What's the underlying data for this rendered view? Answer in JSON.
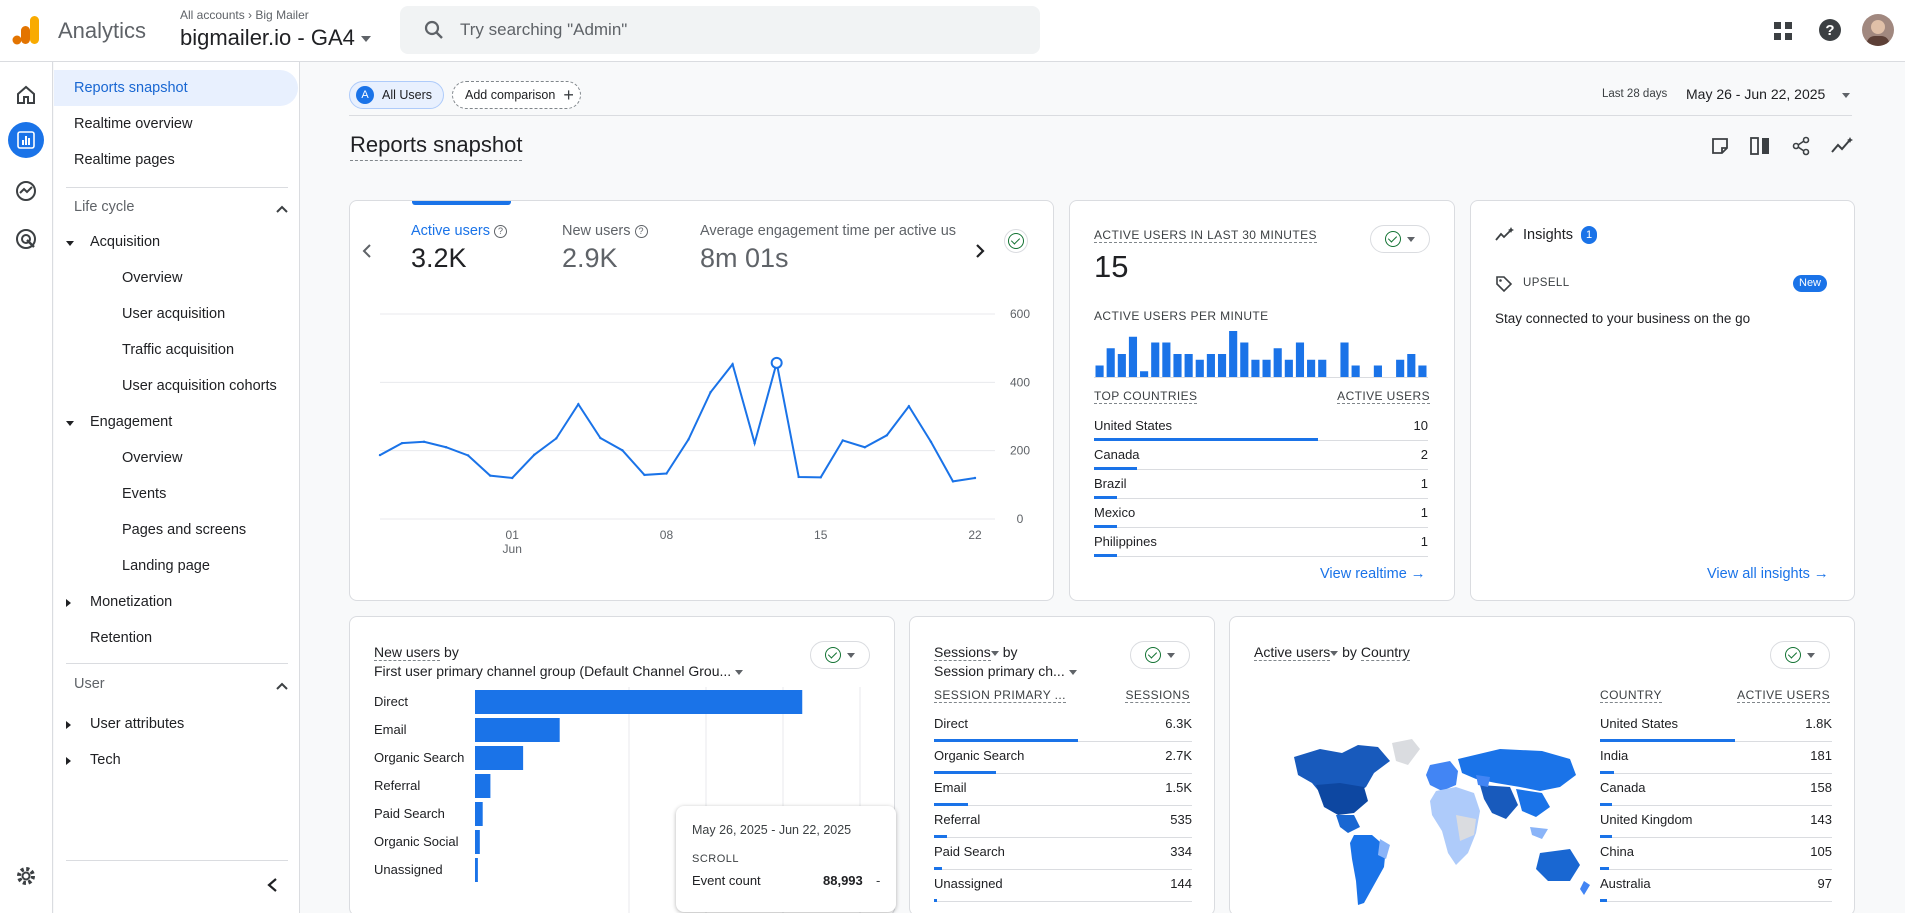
{
  "header": {
    "app_name": "Analytics",
    "breadcrumb_root": "All accounts",
    "breadcrumb_account": "Big Mailer",
    "property": "bigmailer.io - GA4",
    "search_placeholder": "Try searching \"Admin\""
  },
  "nav": {
    "items_top": [
      "Reports snapshot",
      "Realtime overview",
      "Realtime pages"
    ],
    "lifecycle_label": "Life cycle",
    "acquisition": {
      "label": "Acquisition",
      "children": [
        "Overview",
        "User acquisition",
        "Traffic acquisition",
        "User acquisition cohorts"
      ]
    },
    "engagement": {
      "label": "Engagement",
      "children": [
        "Overview",
        "Events",
        "Pages and screens",
        "Landing page"
      ]
    },
    "monetization": "Monetization",
    "retention": "Retention",
    "user_label": "User",
    "user_attributes": "User attributes",
    "tech": "Tech"
  },
  "toolbar": {
    "segment_letter": "A",
    "segment_label": "All Users",
    "add_comparison": "Add comparison",
    "range_label": "Last 28 days",
    "range_value": "May 26 - Jun 22, 2025"
  },
  "page_title": "Reports snapshot",
  "metrics": [
    {
      "label": "Active users",
      "value": "3.2K"
    },
    {
      "label": "New users",
      "value": "2.9K"
    },
    {
      "label": "Average engagement time per active us",
      "value": "8m 01s"
    }
  ],
  "chart_data": [
    {
      "type": "line",
      "series": [
        {
          "name": "Active users",
          "values": [
            187,
            222,
            226,
            210,
            186,
            127,
            120,
            188,
            236,
            336,
            237,
            201,
            129,
            133,
            233,
            371,
            453,
            222,
            457,
            123,
            122,
            230,
            210,
            245,
            330,
            226,
            110,
            120
          ]
        }
      ],
      "x_tick_labels": [
        {
          "day": "01",
          "month": "Jun"
        },
        {
          "day": "08"
        },
        {
          "day": "15"
        },
        {
          "day": "22"
        }
      ],
      "y_ticks": [
        "0",
        "200",
        "400",
        "600"
      ],
      "ylim": [
        0,
        600
      ],
      "highlight_index": 18
    },
    {
      "type": "bar",
      "title": "ACTIVE USERS PER MINUTE",
      "values": [
        2,
        5,
        4,
        7,
        1,
        6,
        6,
        4,
        4,
        3,
        4,
        4,
        8,
        6,
        3,
        3,
        5,
        3,
        6,
        3,
        3,
        0,
        6,
        2,
        0,
        2,
        0,
        3,
        4,
        2
      ],
      "ylim": [
        0,
        8
      ]
    },
    {
      "type": "bar",
      "orientation": "horizontal",
      "categories": [
        "Direct",
        "Email",
        "Organic Search",
        "Referral",
        "Paid Search",
        "Organic Social",
        "Unassigned"
      ],
      "values": [
        1700,
        440,
        250,
        80,
        40,
        25,
        15
      ],
      "xlim": [
        0,
        2000
      ]
    }
  ],
  "realtime": {
    "title": "ACTIVE USERS IN LAST 30 MINUTES",
    "value": "15",
    "per_minute": "ACTIVE USERS PER MINUTE",
    "col1": "TOP COUNTRIES",
    "col2": "ACTIVE USERS",
    "rows": [
      {
        "k": "United States",
        "v": "10",
        "f": 0.67
      },
      {
        "k": "Canada",
        "v": "2",
        "f": 0.13
      },
      {
        "k": "Brazil",
        "v": "1",
        "f": 0.07
      },
      {
        "k": "Mexico",
        "v": "1",
        "f": 0.07
      },
      {
        "k": "Philippines",
        "v": "1",
        "f": 0.07
      }
    ],
    "link": "View realtime"
  },
  "insights": {
    "title": "Insights",
    "count": "1",
    "tag": "UPSELL",
    "badge": "New",
    "text": "Stay connected to your business on the go",
    "link": "View all insights"
  },
  "new_users_card": {
    "title": "New users",
    "by": "by",
    "dimension": "First user primary channel group (Default Channel Grou..."
  },
  "tooltip": {
    "date": "May 26, 2025 - Jun 22, 2025",
    "event": "SCROLL",
    "label": "Event count",
    "value": "88,993",
    "dash": "-"
  },
  "sessions_card": {
    "title": "Sessions",
    "by": "by",
    "dimension": "Session primary ch...",
    "col1": "SESSION PRIMARY ...",
    "col2": "SESSIONS",
    "rows": [
      {
        "k": "Direct",
        "v": "6.3K",
        "f": 0.56
      },
      {
        "k": "Organic Search",
        "v": "2.7K",
        "f": 0.24
      },
      {
        "k": "Email",
        "v": "1.5K",
        "f": 0.13
      },
      {
        "k": "Referral",
        "v": "535",
        "f": 0.05
      },
      {
        "k": "Paid Search",
        "v": "334",
        "f": 0.03
      },
      {
        "k": "Unassigned",
        "v": "144",
        "f": 0.01
      }
    ]
  },
  "country_card": {
    "title": "Active users",
    "by": "by",
    "dimension": "Country",
    "col1": "COUNTRY",
    "col2": "ACTIVE USERS",
    "rows": [
      {
        "k": "United States",
        "v": "1.8K",
        "f": 0.58
      },
      {
        "k": "India",
        "v": "181",
        "f": 0.06
      },
      {
        "k": "Canada",
        "v": "158",
        "f": 0.05
      },
      {
        "k": "United Kingdom",
        "v": "143",
        "f": 0.05
      },
      {
        "k": "China",
        "v": "105",
        "f": 0.04
      },
      {
        "k": "Australia",
        "v": "97",
        "f": 0.03
      }
    ]
  },
  "colors": {
    "accent": "#1a73e8",
    "bar": "#1a73e8",
    "check": "#137333",
    "badge": "#1a73e8"
  }
}
